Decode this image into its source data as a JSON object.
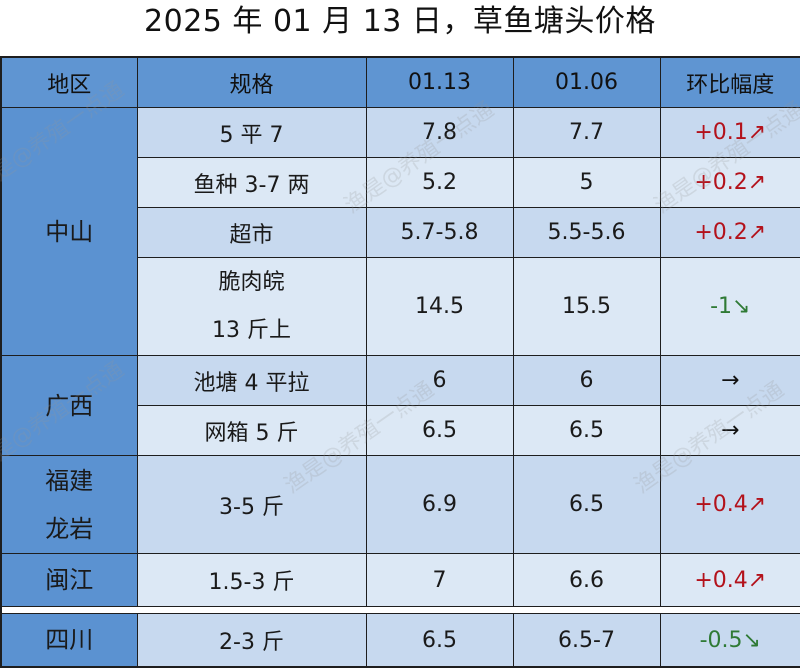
{
  "title": "2025 年 01 月 13 日，草鱼塘头价格",
  "watermark": "渔是@养殖一点通",
  "headers": [
    "地区",
    "规格",
    "01.13",
    "01.06",
    "环比幅度"
  ],
  "colors": {
    "header_bg": "#5f95d2",
    "region_bg": "#5b92d1",
    "row_a": "#c7d9ef",
    "row_b": "#dce8f5",
    "up": "#b3121b",
    "down": "#2f7a35"
  },
  "groups": [
    {
      "region": "中山",
      "rows": [
        {
          "spec": "5 平 7",
          "cur": "7.8",
          "prev": "7.7",
          "change": "+0.1↗",
          "dir": "up"
        },
        {
          "spec": "鱼种 3-7 两",
          "cur": "5.2",
          "prev": "5",
          "change": "+0.2↗",
          "dir": "up"
        },
        {
          "spec": "超市",
          "cur": "5.7-5.8",
          "prev": "5.5-5.6",
          "change": "+0.2↗",
          "dir": "up"
        },
        {
          "spec_lines": [
            "脆肉皖",
            "13 斤上"
          ],
          "cur": "14.5",
          "prev": "15.5",
          "change": "-1↘",
          "dir": "down"
        }
      ]
    },
    {
      "region": "广西",
      "rows": [
        {
          "spec": "池塘 4 平拉",
          "cur": "6",
          "prev": "6",
          "change": "→",
          "dir": "flat"
        },
        {
          "spec": "网箱 5 斤",
          "cur": "6.5",
          "prev": "6.5",
          "change": "→",
          "dir": "flat"
        }
      ]
    },
    {
      "region_lines": [
        "福建",
        "龙岩"
      ],
      "rows": [
        {
          "spec": "3-5 斤",
          "cur": "6.9",
          "prev": "6.5",
          "change": "+0.4↗",
          "dir": "up"
        }
      ]
    },
    {
      "region": "闽江",
      "rows": [
        {
          "spec": "1.5-3 斤",
          "cur": "7",
          "prev": "6.6",
          "change": "+0.4↗",
          "dir": "up"
        }
      ]
    },
    {
      "region": "四川",
      "rows": [
        {
          "spec": "2-3 斤",
          "cur": "6.5",
          "prev": "6.5-7",
          "change": "-0.5↘",
          "dir": "down"
        }
      ]
    }
  ]
}
